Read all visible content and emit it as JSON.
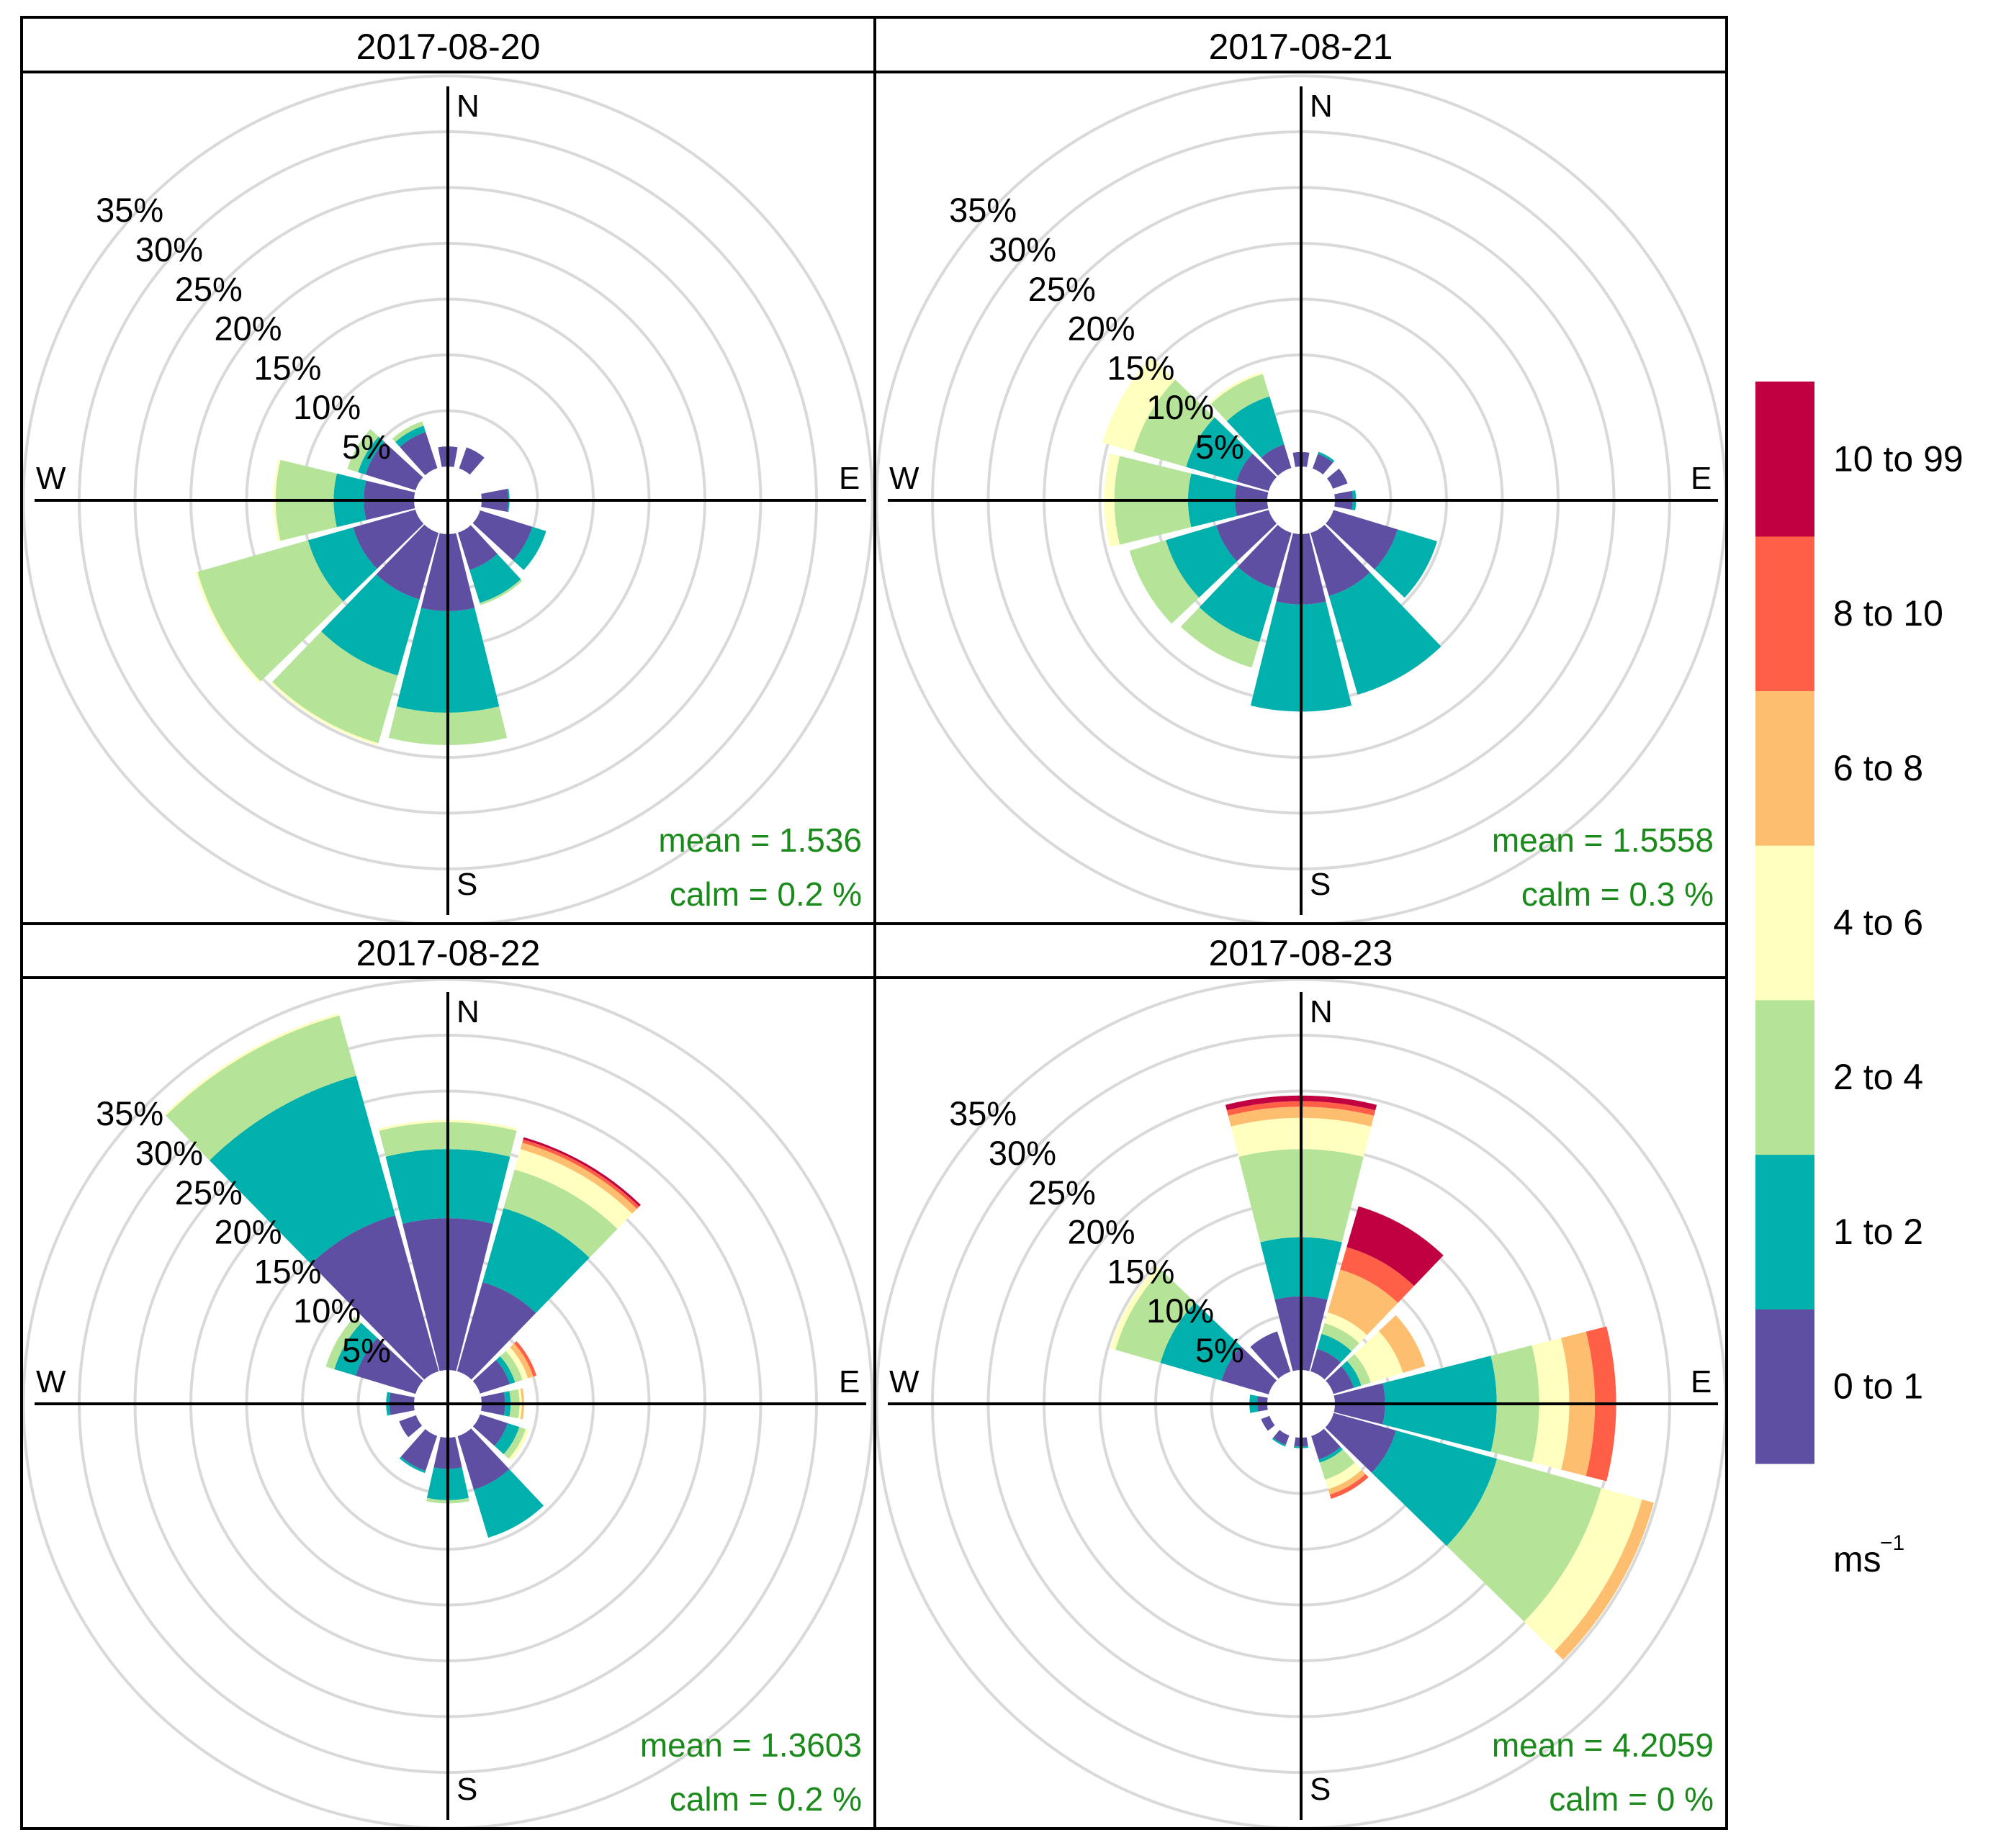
{
  "chart_data": {
    "type": "windrose",
    "bin_labels": [
      "0 to 1",
      "1 to 2",
      "2 to 4",
      "4 to 6",
      "6 to 8",
      "8 to 10",
      "10 to 99"
    ],
    "bin_colors": [
      "#5e4fa2",
      "#00b0ad",
      "#b5e398",
      "#ffffbf",
      "#fdbf6f",
      "#ff5f46",
      "#c00040"
    ],
    "legend_unit": "ms",
    "legend_unit_exponent": "−1",
    "radial_ticks": [
      5,
      10,
      15,
      20,
      25,
      30,
      35
    ],
    "radial_tick_labels": [
      "5%",
      "10%",
      "15%",
      "20%",
      "25%",
      "30%",
      "35%"
    ],
    "compass_labels": [
      "N",
      "E",
      "S",
      "W"
    ],
    "direction_step_deg": 30,
    "panels": [
      {
        "title": "2017-08-20",
        "mean_label": "mean  =  1.536",
        "calm_label": "calm =  0.2 %",
        "directions": [
          {
            "dir": 0,
            "cum": [
              1.8
            ]
          },
          {
            "dir": 30,
            "cum": [
              2.0
            ]
          },
          {
            "dir": 90,
            "cum": [
              2.4,
              2.5
            ]
          },
          {
            "dir": 120,
            "cum": [
              4.9,
              6.2
            ]
          },
          {
            "dir": 150,
            "cum": [
              3.5,
              6.6,
              6.8
            ]
          },
          {
            "dir": 180,
            "cum": [
              6.9,
              16.0,
              18.9
            ]
          },
          {
            "dir": 210,
            "cum": [
              6.2,
              13.3,
              19.6,
              19.8
            ]
          },
          {
            "dir": 240,
            "cum": [
              5.8,
              10.0,
              20.3,
              20.5
            ]
          },
          {
            "dir": 270,
            "cum": [
              4.5,
              7.2,
              12.4,
              12.6
            ]
          },
          {
            "dir": 300,
            "cum": [
              4.7,
              5.4,
              6.4
            ]
          },
          {
            "dir": 330,
            "cum": [
              3.4,
              4.0,
              4.4
            ]
          }
        ]
      },
      {
        "title": "2017-08-21",
        "mean_label": "mean  =  1.5558",
        "calm_label": "calm =  0.3 %",
        "directions": [
          {
            "dir": 0,
            "cum": [
              1.3
            ]
          },
          {
            "dir": 30,
            "cum": [
              1.4,
              1.6
            ]
          },
          {
            "dir": 60,
            "cum": [
              1.4
            ]
          },
          {
            "dir": 90,
            "cum": [
              1.6,
              1.9
            ]
          },
          {
            "dir": 120,
            "cum": [
              6.0,
              9.7
            ]
          },
          {
            "dir": 150,
            "cum": [
              5.9,
              15.1
            ]
          },
          {
            "dir": 180,
            "cum": [
              6.3,
              15.9
            ]
          },
          {
            "dir": 210,
            "cum": [
              5.2,
              10.2,
              12.6
            ]
          },
          {
            "dir": 240,
            "cum": [
              4.9,
              9.6,
              13.0
            ]
          },
          {
            "dir": 270,
            "cum": [
              2.9,
              7.1,
              13.7,
              14.6
            ]
          },
          {
            "dir": 300,
            "cum": [
              3.0,
              7.7,
              12.6,
              15.5
            ]
          },
          {
            "dir": 330,
            "cum": [
              2.2,
              6.7,
              8.8,
              9.0
            ]
          }
        ]
      },
      {
        "title": "2017-08-22",
        "mean_label": "mean  =  1.3603",
        "calm_label": "calm =  0.2 %",
        "directions": [
          {
            "dir": 0,
            "cum": [
              13.6,
              19.8,
              22.2,
              22.4
            ]
          },
          {
            "dir": 30,
            "cum": [
              8.3,
              15.2,
              18.8,
              20.7,
              21.3,
              21.6,
              21.8
            ]
          },
          {
            "dir": 60,
            "cum": [
              2.8,
              3.3,
              4.0,
              4.5,
              5.0,
              5.3
            ]
          },
          {
            "dir": 90,
            "cum": [
              2.1,
              2.6,
              3.4,
              3.6,
              3.8
            ]
          },
          {
            "dir": 120,
            "cum": [
              2.6,
              3.7,
              4.3,
              4.6
            ]
          },
          {
            "dir": 150,
            "cum": [
              5.0,
              9.5
            ]
          },
          {
            "dir": 180,
            "cum": [
              2.8,
              5.6,
              5.9
            ]
          },
          {
            "dir": 210,
            "cum": [
              3.3,
              3.5
            ]
          },
          {
            "dir": 240,
            "cum": [
              1.6
            ]
          },
          {
            "dir": 270,
            "cum": [
              2.2,
              2.5
            ]
          },
          {
            "dir": 300,
            "cum": [
              5.6,
              7.6,
              8.4
            ]
          },
          {
            "dir": 330,
            "cum": [
              14.5,
              27.5,
              33.1,
              33.3
            ]
          }
        ]
      },
      {
        "title": "2017-08-23",
        "mean_label": "mean  =  4.2059",
        "calm_label": "calm =  0 %",
        "directions": [
          {
            "dir": 0,
            "cum": [
              6.6,
              11.9,
              19.8,
              22.6,
              23.6,
              24.1,
              24.6
            ]
          },
          {
            "dir": 30,
            "cum": [
              2.1,
              3.5,
              4.5,
              5.5,
              9.5,
              11.6,
              15.4
            ]
          },
          {
            "dir": 60,
            "cum": [
              1.9,
              2.6,
              3.5,
              6.5,
              8.6
            ]
          },
          {
            "dir": 90,
            "cum": [
              4.5,
              14.5,
              18.3,
              21.0,
              23.3,
              25.2
            ]
          },
          {
            "dir": 120,
            "cum": [
              5.8,
              15.2,
              24.9,
              28.7,
              29.8
            ]
          },
          {
            "dir": 150,
            "cum": [
              2.2,
              2.5,
              4.1,
              5.0,
              5.5,
              5.9
            ]
          },
          {
            "dir": 180,
            "cum": [
              0.8,
              0.95
            ]
          },
          {
            "dir": 210,
            "cum": [
              0.9,
              1.05
            ]
          },
          {
            "dir": 240,
            "cum": [
              0.8
            ]
          },
          {
            "dir": 270,
            "cum": [
              0.9,
              1.6
            ]
          },
          {
            "dir": 300,
            "cum": [
              4.4,
              10.1,
              14.3,
              14.8
            ]
          },
          {
            "dir": 330,
            "cum": [
              3.8
            ]
          }
        ]
      }
    ]
  }
}
